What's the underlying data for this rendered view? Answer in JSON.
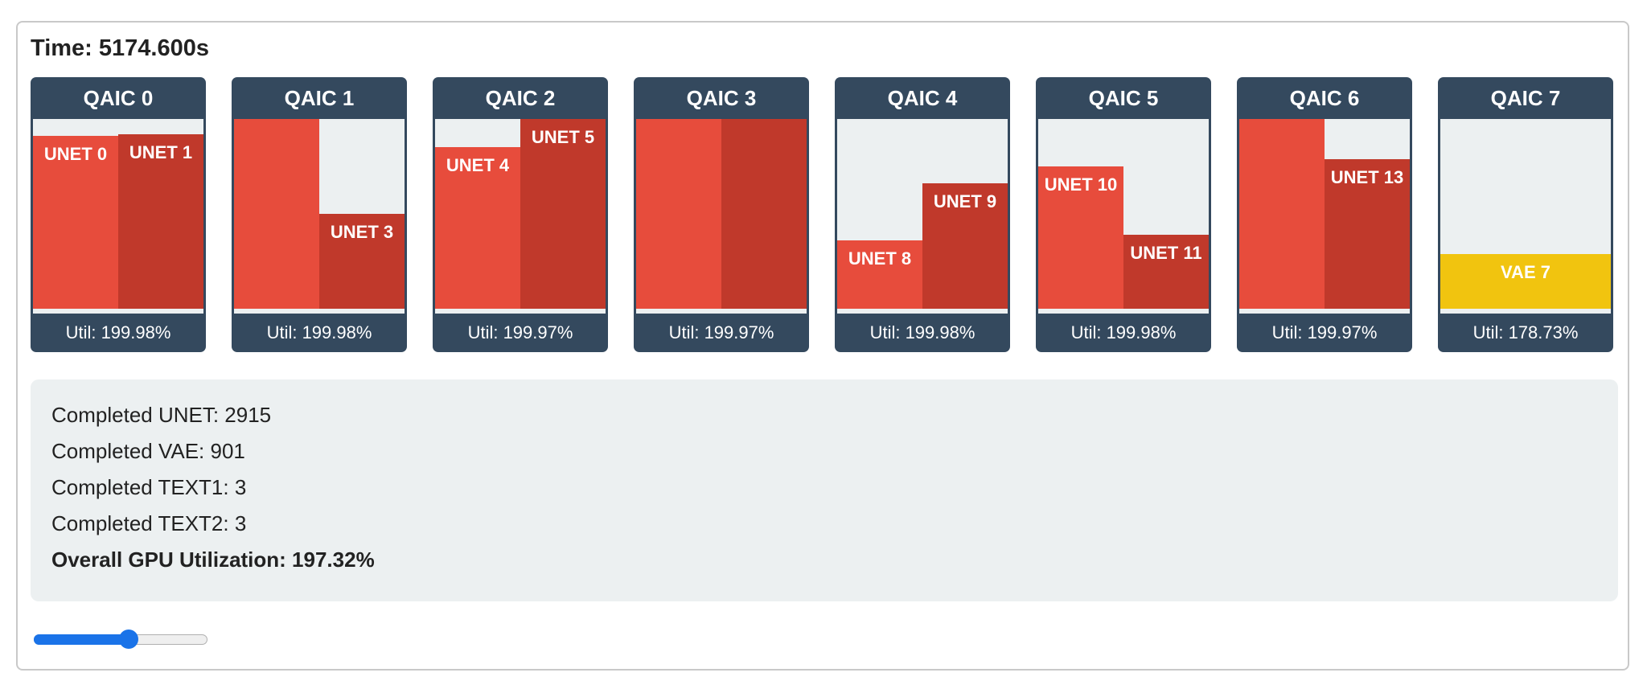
{
  "time_label": "Time: 5174.600s",
  "colors": {
    "unet_primary": "#e74c3c",
    "unet_secondary": "#c0392b",
    "vae": "#f1c40f",
    "card_header": "#34495e",
    "empty": "#ecf0f1",
    "slider": "#1a73e8"
  },
  "cards": [
    {
      "title": "QAIC 0",
      "util": "Util: 199.98%",
      "slots": [
        {
          "label": "UNET 0",
          "kind": "unet",
          "fill": 0.91
        },
        {
          "label": "UNET 1",
          "kind": "unet",
          "fill": 0.92
        }
      ]
    },
    {
      "title": "QAIC 1",
      "util": "Util: 199.98%",
      "slots": [
        {
          "label": "",
          "kind": "unet",
          "fill": 1.0
        },
        {
          "label": "UNET 3",
          "kind": "unet",
          "fill": 0.5
        }
      ]
    },
    {
      "title": "QAIC 2",
      "util": "Util: 199.97%",
      "slots": [
        {
          "label": "UNET 4",
          "kind": "unet",
          "fill": 0.85
        },
        {
          "label": "UNET 5",
          "kind": "unet",
          "fill": 1.0
        }
      ]
    },
    {
      "title": "QAIC 3",
      "util": "Util: 199.97%",
      "slots": [
        {
          "label": "",
          "kind": "unet",
          "fill": 1.0
        },
        {
          "label": "",
          "kind": "unet",
          "fill": 1.0
        }
      ]
    },
    {
      "title": "QAIC 4",
      "util": "Util: 199.98%",
      "slots": [
        {
          "label": "UNET 8",
          "kind": "unet",
          "fill": 0.36
        },
        {
          "label": "UNET 9",
          "kind": "unet",
          "fill": 0.66
        }
      ]
    },
    {
      "title": "QAIC 5",
      "util": "Util: 199.98%",
      "slots": [
        {
          "label": "UNET 10",
          "kind": "unet",
          "fill": 0.75
        },
        {
          "label": "UNET 11",
          "kind": "unet",
          "fill": 0.39
        }
      ]
    },
    {
      "title": "QAIC 6",
      "util": "Util: 199.97%",
      "slots": [
        {
          "label": "",
          "kind": "unet",
          "fill": 1.0
        },
        {
          "label": "UNET 13",
          "kind": "unet",
          "fill": 0.79
        }
      ]
    },
    {
      "title": "QAIC 7",
      "util": "Util: 178.73%",
      "slots": [
        {
          "label": "VAE 7",
          "kind": "vae",
          "fill": 0.29,
          "full_width": true
        }
      ]
    }
  ],
  "stats": {
    "unet": "Completed UNET: 2915",
    "vae": "Completed VAE: 901",
    "text1": "Completed TEXT1: 3",
    "text2": "Completed TEXT2: 3",
    "overall": "Overall GPU Utilization: 197.32%"
  },
  "slider": {
    "value_fraction": 0.55
  }
}
